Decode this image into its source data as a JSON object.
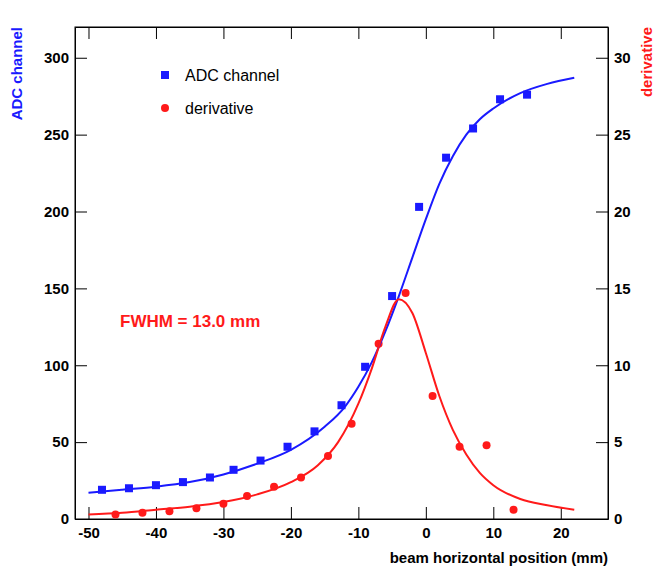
{
  "chart_data": {
    "type": "scatter",
    "xlabel": "beam horizontal position (mm)",
    "ylabel": "ADC channel",
    "y2label": "derivative",
    "annotation": "FWHM = 13.0 mm",
    "legend": "upper left",
    "grid": false,
    "xlim": [
      -52,
      27
    ],
    "xticks": [
      -50,
      -40,
      -30,
      -20,
      -10,
      0,
      10,
      20
    ],
    "ylim": [
      0,
      320
    ],
    "yticks": [
      0,
      50,
      100,
      150,
      200,
      250,
      300
    ],
    "y2lim": [
      0,
      32
    ],
    "y2ticks": [
      0,
      5,
      10,
      15,
      20,
      25,
      30
    ],
    "series": [
      {
        "name": "ADC channel",
        "type": "scatter",
        "marker": "square",
        "color": "#1a1aff",
        "x": [
          -48,
          -44,
          -40,
          -36,
          -32,
          -28.5,
          -24.5,
          -20.5,
          -16.5,
          -12.5,
          -9,
          -5,
          -1,
          3,
          7,
          11,
          15
        ],
        "values": [
          19,
          20,
          22,
          24,
          27,
          32,
          38,
          47,
          57,
          74,
          99,
          145,
          203,
          235,
          254,
          273,
          276
        ]
      },
      {
        "name": "derivative",
        "type": "scatter",
        "marker": "circle",
        "color": "#ff1a1a",
        "axis": "y2",
        "x": [
          -46,
          -42,
          -38,
          -34,
          -30,
          -26.5,
          -22.5,
          -18.5,
          -14.5,
          -11,
          -7,
          -3,
          1,
          5,
          9,
          13
        ],
        "values": [
          0.3,
          0.4,
          0.5,
          0.7,
          1.0,
          1.5,
          2.1,
          2.7,
          4.1,
          6.2,
          11.4,
          14.7,
          8.0,
          4.7,
          4.8,
          0.6
        ]
      },
      {
        "type": "line",
        "line_style": "solid",
        "color": "#1a1aff",
        "x": [
          -50,
          -45,
          -40,
          -35,
          -30,
          -25,
          -20,
          -15,
          -12,
          -10,
          -8,
          -6,
          -4,
          -2,
          0,
          2,
          4,
          6,
          8,
          10,
          14,
          18,
          22
        ],
        "values": [
          17,
          19,
          21,
          24,
          29,
          36,
          45,
          60,
          73,
          86,
          102,
          122,
          145,
          170,
          195,
          218,
          236,
          250,
          260,
          267,
          277,
          283,
          287
        ]
      },
      {
        "type": "line",
        "line_style": "solid",
        "color": "#ff1a1a",
        "axis": "y2",
        "x": [
          -50,
          -45,
          -40,
          -35,
          -30,
          -25,
          -20,
          -16,
          -13,
          -10,
          -8,
          -6,
          -4,
          -2,
          0,
          2,
          4,
          6,
          8,
          10,
          14,
          18,
          22
        ],
        "values": [
          0.3,
          0.4,
          0.6,
          0.8,
          1.1,
          1.6,
          2.4,
          3.5,
          5.0,
          7.5,
          9.8,
          12.5,
          14.3,
          13.4,
          10.8,
          8.0,
          5.8,
          4.2,
          3.0,
          2.2,
          1.3,
          0.9,
          0.6
        ]
      }
    ]
  }
}
